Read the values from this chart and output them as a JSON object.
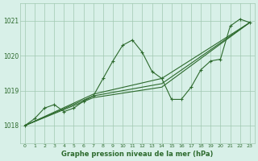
{
  "series": [
    {
      "x": [
        0,
        1,
        2,
        3,
        4,
        5,
        6,
        7,
        8,
        9,
        10,
        11,
        12,
        13,
        14,
        15,
        16,
        17,
        18,
        19,
        20,
        21,
        22,
        23
      ],
      "y": [
        1018.0,
        1018.2,
        1018.5,
        1018.6,
        1018.4,
        1018.5,
        1018.7,
        1018.85,
        1019.35,
        1019.85,
        1020.3,
        1020.45,
        1020.1,
        1019.55,
        1019.35,
        1018.75,
        1018.75,
        1019.1,
        1019.6,
        1019.85,
        1019.9,
        1020.85,
        1021.05,
        1020.95
      ],
      "has_markers": true
    },
    {
      "x": [
        0,
        7,
        14,
        23
      ],
      "y": [
        1018.0,
        1018.9,
        1019.35,
        1020.95
      ],
      "has_markers": false
    },
    {
      "x": [
        0,
        7,
        14,
        23
      ],
      "y": [
        1018.0,
        1018.85,
        1019.2,
        1020.95
      ],
      "has_markers": false
    },
    {
      "x": [
        0,
        7,
        14,
        23
      ],
      "y": [
        1018.0,
        1018.8,
        1019.1,
        1020.95
      ],
      "has_markers": false
    }
  ],
  "line_color": "#2d6a2d",
  "bg_color": "#d8f0e8",
  "grid_color": "#a0c8b0",
  "text_color": "#2d6a2d",
  "xlabel": "Graphe pression niveau de la mer (hPa)",
  "ylim": [
    1017.5,
    1021.5
  ],
  "xlim": [
    -0.5,
    23.5
  ],
  "yticks": [
    1018,
    1019,
    1020,
    1021
  ],
  "xticks": [
    0,
    1,
    2,
    3,
    4,
    5,
    6,
    7,
    8,
    9,
    10,
    11,
    12,
    13,
    14,
    15,
    16,
    17,
    18,
    19,
    20,
    21,
    22,
    23
  ]
}
